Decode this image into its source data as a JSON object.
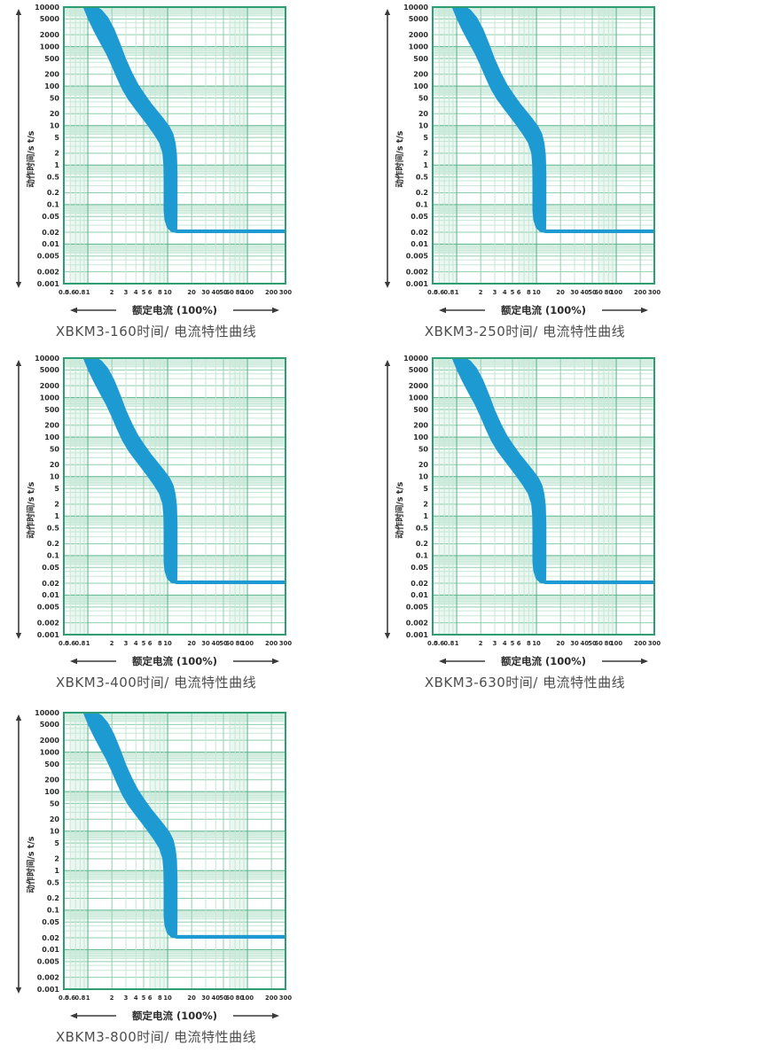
{
  "page": {
    "background": "#ffffff",
    "title_color": "#4d4d4d"
  },
  "chart_data": {
    "type": "area",
    "x_scale": "log",
    "y_scale": "log",
    "x_range": [
      0.5,
      300
    ],
    "y_range": [
      0.001,
      10000
    ],
    "xlabel": "额定电流 (100%)",
    "ylabel": "动作时间/s t/s",
    "x_ticks": [
      "0.5",
      "0.6",
      "0.8",
      "1",
      "2",
      "3",
      "4",
      "5",
      "6",
      "8",
      "10",
      "20",
      "30",
      "40",
      "50",
      "60",
      "80",
      "100",
      "200",
      "300"
    ],
    "x_tick_values": [
      0.5,
      0.6,
      0.8,
      1,
      2,
      3,
      4,
      5,
      6,
      8,
      10,
      20,
      30,
      40,
      50,
      60,
      80,
      100,
      200,
      300
    ],
    "y_ticks": [
      "10000",
      "5000",
      "2000",
      "1000",
      "500",
      "200",
      "100",
      "50",
      "20",
      "10",
      "5",
      "2",
      "1",
      "0.5",
      "0.2",
      "0.1",
      "0.05",
      "0.02",
      "0.01",
      "0.005",
      "0.002",
      "0.001"
    ],
    "y_tick_values": [
      10000,
      5000,
      2000,
      1000,
      500,
      200,
      100,
      50,
      20,
      10,
      5,
      2,
      1,
      0.5,
      0.2,
      0.1,
      0.05,
      0.02,
      0.01,
      0.005,
      0.002,
      0.001
    ],
    "grid": true,
    "legend": "none",
    "colors": {
      "band": "#1e9ad3",
      "grid_major": "#56b289",
      "grid_mid": "#8fcfaf",
      "grid_minor": "#c6e7d6",
      "grid_stripe": "#aadcc6",
      "plot_border": "#2d9e72",
      "tick_text": "#2b2b2b",
      "axis_arrow": "#3a3a3a"
    },
    "band_outline": [
      [
        0.87,
        10000
      ],
      [
        1.0,
        5000
      ],
      [
        1.18,
        2500
      ],
      [
        1.4,
        1300
      ],
      [
        1.66,
        700
      ],
      [
        1.95,
        350
      ],
      [
        2.3,
        160
      ],
      [
        2.7,
        80
      ],
      [
        3.2,
        45
      ],
      [
        3.8,
        28
      ],
      [
        4.6,
        17
      ],
      [
        5.5,
        10.5
      ],
      [
        6.6,
        6.3
      ],
      [
        7.8,
        3.7
      ],
      [
        8.6,
        2.0
      ],
      [
        8.85,
        1.0
      ],
      [
        8.9,
        0.4
      ],
      [
        8.9,
        0.07
      ],
      [
        9.15,
        0.04
      ],
      [
        9.8,
        0.026
      ],
      [
        11.0,
        0.0205
      ],
      [
        13.0,
        0.019
      ],
      [
        300,
        0.019
      ],
      [
        300,
        0.0235
      ],
      [
        13.2,
        0.0235
      ],
      [
        13.28,
        0.045
      ],
      [
        13.3,
        0.12
      ],
      [
        13.3,
        0.6
      ],
      [
        13.1,
        1.8
      ],
      [
        12.6,
        3.6
      ],
      [
        11.8,
        6.2
      ],
      [
        10.6,
        9.5
      ],
      [
        9.2,
        14
      ],
      [
        7.7,
        22
      ],
      [
        6.3,
        36
      ],
      [
        5.2,
        62
      ],
      [
        4.3,
        110
      ],
      [
        3.6,
        220
      ],
      [
        3.0,
        500
      ],
      [
        2.55,
        1200
      ],
      [
        2.15,
        2800
      ],
      [
        1.8,
        5500
      ],
      [
        1.5,
        8500
      ],
      [
        1.32,
        10000
      ]
    ],
    "charts": [
      {
        "title": "XBKM3-160时间/ 电流特性曲线"
      },
      {
        "title": "XBKM3-250时间/ 电流特性曲线"
      },
      {
        "title": "XBKM3-400时间/ 电流特性曲线"
      },
      {
        "title": "XBKM3-630时间/ 电流特性曲线"
      },
      {
        "title": "XBKM3-800时间/ 电流特性曲线"
      }
    ]
  }
}
